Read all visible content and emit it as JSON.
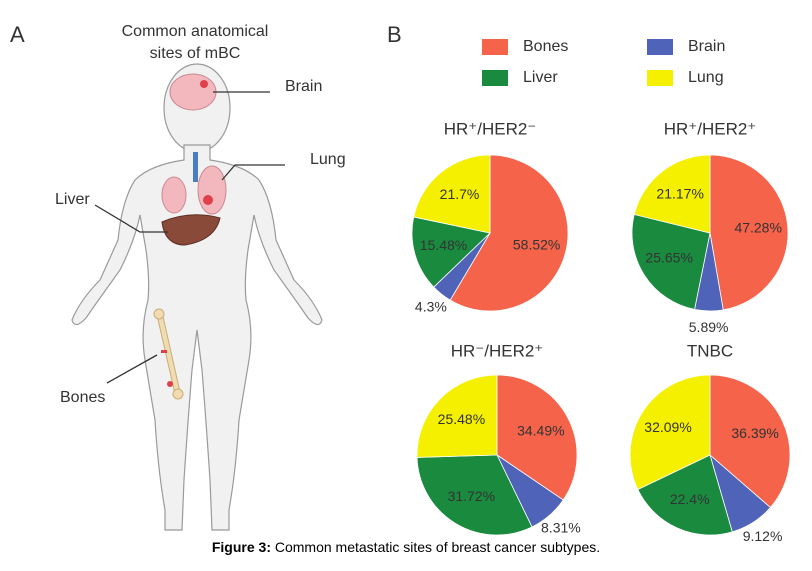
{
  "panels": {
    "a": "A",
    "b": "B"
  },
  "anatomy": {
    "title_lines": [
      "Common anatomical",
      "sites of mBC"
    ],
    "labels": [
      "Brain",
      "Lung",
      "Liver",
      "Bones"
    ]
  },
  "caption": {
    "label": "Figure 3:",
    "text": " Common metastatic sites of breast cancer subtypes."
  },
  "chart_data": [
    {
      "type": "pie",
      "title": "HR⁺/HER2⁻",
      "categories": [
        "Bones",
        "Brain",
        "Liver",
        "Lung"
      ],
      "colors": [
        "#f4634a",
        "#4f63b8",
        "#1a8a3f",
        "#f5f000"
      ],
      "values": [
        58.52,
        4.3,
        15.48,
        21.7
      ],
      "value_labels": [
        "58.52%",
        "4.3%",
        "15.48%",
        "21.7%"
      ]
    },
    {
      "type": "pie",
      "title": "HR⁺/HER2⁺",
      "categories": [
        "Bones",
        "Brain",
        "Liver",
        "Lung"
      ],
      "colors": [
        "#f4634a",
        "#4f63b8",
        "#1a8a3f",
        "#f5f000"
      ],
      "values": [
        47.28,
        5.89,
        25.65,
        21.17
      ],
      "value_labels": [
        "47.28%",
        "5.89%",
        "25.65%",
        "21.17%"
      ]
    },
    {
      "type": "pie",
      "title": "HR⁻/HER2⁺",
      "categories": [
        "Bones",
        "Brain",
        "Liver",
        "Lung"
      ],
      "colors": [
        "#f4634a",
        "#4f63b8",
        "#1a8a3f",
        "#f5f000"
      ],
      "values": [
        34.49,
        8.31,
        31.72,
        25.48
      ],
      "value_labels": [
        "34.49%",
        "8.31%",
        "31.72%",
        "25.48%"
      ]
    },
    {
      "type": "pie",
      "title": "TNBC",
      "categories": [
        "Bones",
        "Brain",
        "Liver",
        "Lung"
      ],
      "colors": [
        "#f4634a",
        "#4f63b8",
        "#1a8a3f",
        "#f5f000"
      ],
      "values": [
        36.39,
        9.12,
        22.4,
        32.09
      ],
      "value_labels": [
        "36.39%",
        "9.12%",
        "22.4%",
        "32.09%"
      ]
    }
  ]
}
